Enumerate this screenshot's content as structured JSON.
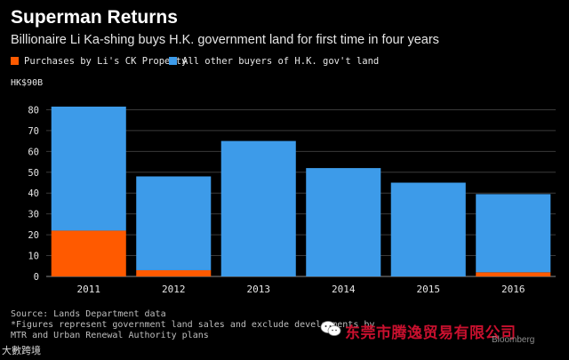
{
  "header": {
    "title": "Superman Returns",
    "subtitle": "Billionaire Li Ka-shing buys H.K. government land for first time in four years"
  },
  "legend": [
    {
      "label": "Purchases by Li's CK Property",
      "color": "#ff5a00"
    },
    {
      "label": "All other buyers of H.K. gov't land",
      "color": "#3d9be9"
    }
  ],
  "footer": {
    "source": "Source: Lands Department data",
    "note1": "*Figures represent government land sales and exclude developments by",
    "note2": "MTR and Urban Renewal Authority plans"
  },
  "watermarks": {
    "left": "大數跨境",
    "chinese": "东莞市腾逸贸易有限公司",
    "bloomberg": "Bloomberg"
  },
  "chart_data": {
    "type": "bar",
    "stacked": true,
    "categories": [
      "2011",
      "2012",
      "2013",
      "2014",
      "2015",
      "2016"
    ],
    "series": [
      {
        "name": "Purchases by Li's CK Property",
        "color": "#ff5a00",
        "values": [
          22,
          3,
          0,
          0,
          0,
          2
        ]
      },
      {
        "name": "All other buyers of H.K. gov't land",
        "color": "#3d9be9",
        "values": [
          59.5,
          45,
          65,
          52,
          45,
          37.5
        ]
      }
    ],
    "ylabel": "HK$90B",
    "ylim": [
      0,
      90
    ],
    "yticks": [
      0,
      10,
      20,
      30,
      40,
      50,
      60,
      70,
      80
    ],
    "grid": true,
    "legend_position": "top-left"
  }
}
